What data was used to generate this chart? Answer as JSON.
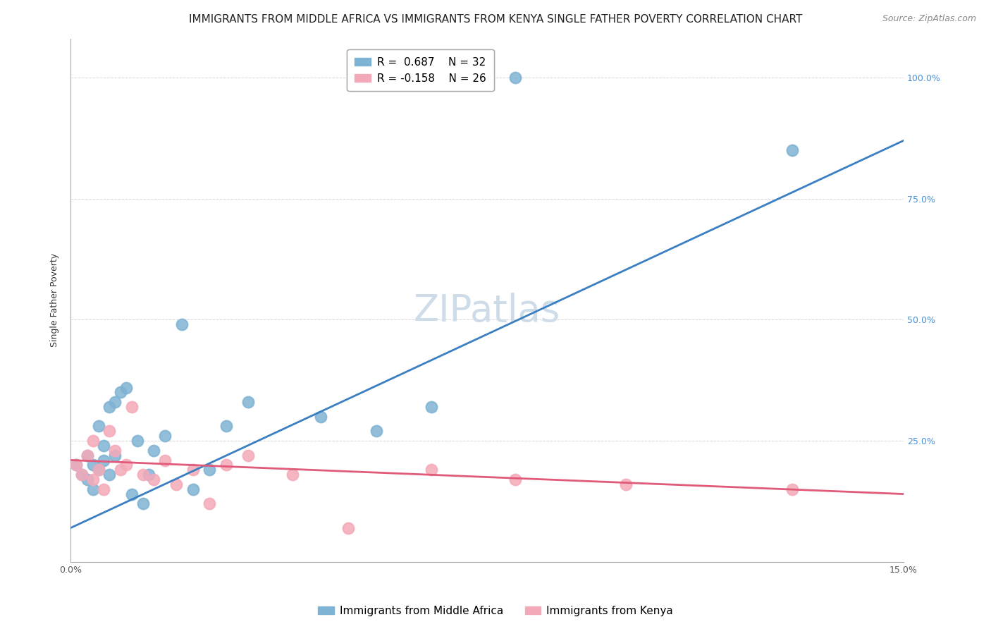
{
  "title": "IMMIGRANTS FROM MIDDLE AFRICA VS IMMIGRANTS FROM KENYA SINGLE FATHER POVERTY CORRELATION CHART",
  "source": "Source: ZipAtlas.com",
  "ylabel": "Single Father Poverty",
  "yticks": [
    0.0,
    0.25,
    0.5,
    0.75,
    1.0
  ],
  "ytick_labels": [
    "",
    "25.0%",
    "50.0%",
    "75.0%",
    "100.0%"
  ],
  "xlim": [
    0.0,
    0.15
  ],
  "ylim": [
    0.0,
    1.08
  ],
  "watermark": "ZIPatlas",
  "series": [
    {
      "label": "Immigrants from Middle Africa",
      "R_text": "R =  0.687",
      "N_text": "N = 32",
      "color": "#7fb3d3",
      "trend_color": "#3a7fc1",
      "x": [
        0.001,
        0.002,
        0.003,
        0.003,
        0.004,
        0.004,
        0.005,
        0.005,
        0.006,
        0.006,
        0.007,
        0.007,
        0.008,
        0.008,
        0.009,
        0.01,
        0.011,
        0.012,
        0.013,
        0.014,
        0.015,
        0.017,
        0.02,
        0.022,
        0.025,
        0.028,
        0.032,
        0.045,
        0.055,
        0.065,
        0.08,
        0.13
      ],
      "y": [
        0.2,
        0.18,
        0.17,
        0.22,
        0.15,
        0.2,
        0.19,
        0.28,
        0.21,
        0.24,
        0.18,
        0.32,
        0.33,
        0.22,
        0.35,
        0.36,
        0.14,
        0.25,
        0.12,
        0.18,
        0.23,
        0.26,
        0.49,
        0.15,
        0.19,
        0.28,
        0.33,
        0.3,
        0.27,
        0.32,
        1.0,
        0.85
      ],
      "trend_x": [
        0.0,
        0.15
      ],
      "trend_y": [
        0.07,
        0.87
      ]
    },
    {
      "label": "Immigrants from Kenya",
      "R_text": "R = -0.158",
      "N_text": "N = 26",
      "color": "#f4a9b8",
      "trend_color": "#e05a7a",
      "x": [
        0.001,
        0.002,
        0.003,
        0.004,
        0.004,
        0.005,
        0.006,
        0.007,
        0.008,
        0.009,
        0.01,
        0.011,
        0.013,
        0.015,
        0.017,
        0.019,
        0.022,
        0.025,
        0.028,
        0.032,
        0.04,
        0.05,
        0.065,
        0.08,
        0.1,
        0.13
      ],
      "y": [
        0.2,
        0.18,
        0.22,
        0.17,
        0.25,
        0.19,
        0.15,
        0.27,
        0.23,
        0.19,
        0.2,
        0.32,
        0.18,
        0.17,
        0.21,
        0.16,
        0.19,
        0.12,
        0.2,
        0.22,
        0.18,
        0.07,
        0.19,
        0.17,
        0.16,
        0.15
      ],
      "trend_x": [
        0.0,
        0.15
      ],
      "trend_y": [
        0.21,
        0.14
      ]
    }
  ],
  "title_fontsize": 11,
  "axis_label_fontsize": 9,
  "tick_fontsize": 9,
  "legend_fontsize": 11,
  "source_fontsize": 9,
  "watermark_fontsize": 38,
  "watermark_color": "#cddce8",
  "background_color": "#ffffff"
}
